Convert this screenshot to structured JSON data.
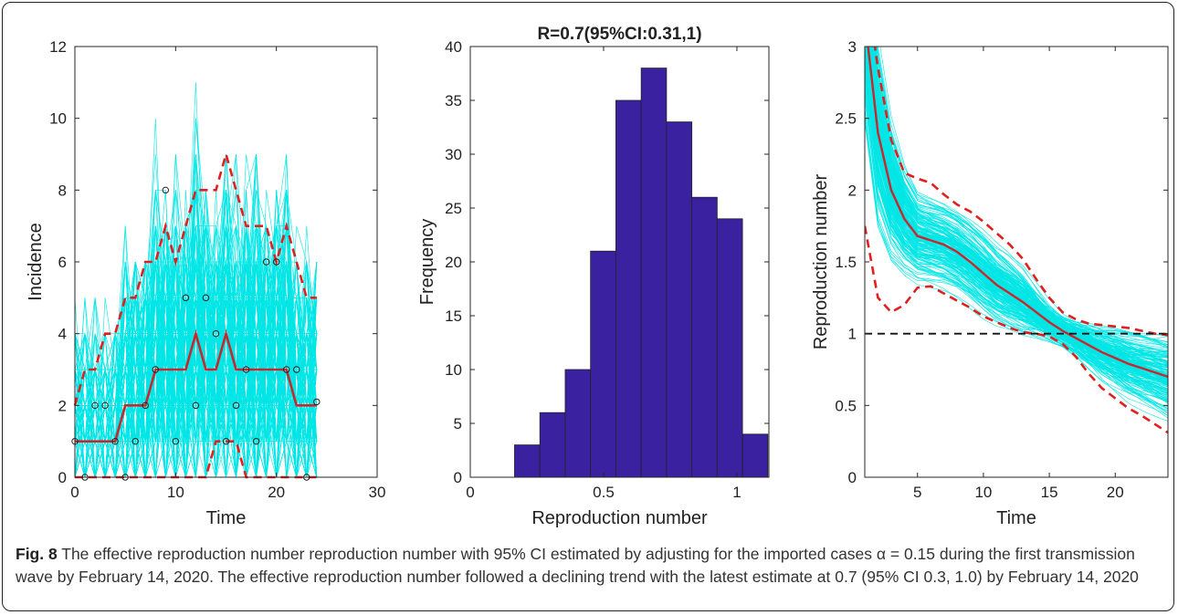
{
  "caption": {
    "label": "Fig. 8",
    "text": "The effective reproduction number reproduction number with 95% CI estimated by adjusting for the imported cases α = 0.15 during the first transmission wave by February 14, 2020. The effective reproduction number followed a declining trend with the latest estimate at 0.7 (95% CI 0.3, 1.0) by February 14, 2020"
  },
  "chart_data": [
    {
      "type": "line",
      "xlabel": "Time",
      "ylabel": "Incidence",
      "xlim": [
        0,
        30
      ],
      "ylim": [
        0,
        12
      ],
      "xticks": [
        0,
        10,
        20,
        30
      ],
      "yticks": [
        0,
        2,
        4,
        6,
        8,
        10,
        12
      ],
      "colors": {
        "simulations": "#00e5e5",
        "median": "#c8282d",
        "bounds": "#e0201e",
        "observed": "#222222"
      },
      "series": [
        {
          "role": "simulations",
          "style": "cyan thin lines",
          "count": 200,
          "x_range": [
            0,
            24
          ]
        },
        {
          "role": "median",
          "style": "solid red",
          "x": [
            0,
            1,
            2,
            3,
            4,
            5,
            6,
            7,
            8,
            9,
            10,
            11,
            12,
            13,
            14,
            15,
            16,
            17,
            18,
            19,
            20,
            21,
            22,
            23,
            24
          ],
          "y": [
            1,
            1,
            1,
            1,
            1,
            2,
            2,
            2,
            3,
            3,
            3,
            3,
            4,
            3,
            3,
            4,
            3,
            3,
            3,
            3,
            3,
            3,
            2,
            2,
            2
          ]
        },
        {
          "role": "upper-95",
          "style": "dashed red",
          "x": [
            0,
            1,
            2,
            3,
            4,
            5,
            6,
            7,
            8,
            9,
            10,
            11,
            12,
            13,
            14,
            15,
            16,
            17,
            18,
            19,
            20,
            21,
            22,
            23,
            24
          ],
          "y": [
            2,
            3,
            3,
            4,
            4,
            5,
            5,
            6,
            6,
            7,
            6,
            7,
            8,
            8,
            8,
            9,
            8,
            7,
            7,
            7,
            6,
            7,
            6,
            5,
            5
          ]
        },
        {
          "role": "lower-95",
          "style": "dashed red",
          "x": [
            0,
            1,
            2,
            3,
            4,
            5,
            6,
            7,
            8,
            9,
            10,
            11,
            12,
            13,
            14,
            15,
            16,
            17,
            18,
            19,
            20,
            21,
            22,
            23,
            24
          ],
          "y": [
            0,
            0,
            0,
            0,
            0,
            0,
            0,
            0,
            0,
            0,
            0,
            0,
            0,
            0,
            1,
            1,
            1,
            0,
            0,
            0,
            0,
            0,
            0,
            0,
            0
          ]
        },
        {
          "role": "observed",
          "style": "black open circles",
          "x": [
            0,
            1,
            2,
            3,
            4,
            5,
            6,
            7,
            8,
            9,
            10,
            11,
            12,
            13,
            14,
            15,
            16,
            17,
            18,
            19,
            20,
            21,
            22,
            23,
            24
          ],
          "y": [
            1,
            0,
            2,
            2,
            1,
            0,
            1,
            2,
            3,
            8,
            1,
            5,
            2,
            5,
            4,
            1,
            2,
            3,
            1,
            6,
            6,
            3,
            3,
            0,
            2.1
          ]
        }
      ]
    },
    {
      "type": "bar",
      "title": "R=0.7(95%CI:0.31,1)",
      "xlabel": "Reproduction number",
      "ylabel": "Frequency",
      "xlim": [
        0,
        1.12
      ],
      "ylim": [
        0,
        40
      ],
      "xticks": [
        0,
        0.5,
        1
      ],
      "xtick_labels": [
        "0",
        "0.5",
        "1"
      ],
      "yticks": [
        0,
        5,
        10,
        15,
        20,
        25,
        30,
        35,
        40
      ],
      "bar_color": "#3a219f",
      "bin_edges": [
        0.166,
        0.261,
        0.356,
        0.451,
        0.546,
        0.641,
        0.736,
        0.831,
        0.926,
        1.021,
        1.116
      ],
      "values": [
        3,
        6,
        10,
        21,
        35,
        38,
        33,
        26,
        24,
        4
      ]
    },
    {
      "type": "line",
      "xlabel": "Time",
      "ylabel": "Reproduction number",
      "xlim": [
        1,
        24
      ],
      "ylim": [
        0,
        3
      ],
      "xticks": [
        5,
        10,
        15,
        20
      ],
      "yticks": [
        0,
        0.5,
        1,
        1.5,
        2,
        2.5,
        3
      ],
      "reference_line": {
        "y": 1,
        "style": "dashed black"
      },
      "colors": {
        "simulations": "#00e5e5",
        "median": "#c8282d",
        "bounds": "#e0201e"
      },
      "series": [
        {
          "role": "simulations",
          "style": "cyan thin lines",
          "count": 200,
          "x_range": [
            1,
            24
          ]
        },
        {
          "role": "median",
          "style": "solid red",
          "x": [
            1,
            2,
            3,
            4,
            5,
            6,
            7,
            8,
            9,
            10,
            11,
            12,
            13,
            14,
            15,
            16,
            17,
            18,
            19,
            20,
            21,
            22,
            23,
            24
          ],
          "y": [
            3.2,
            2.4,
            2.0,
            1.8,
            1.68,
            1.65,
            1.62,
            1.57,
            1.5,
            1.42,
            1.34,
            1.28,
            1.22,
            1.15,
            1.08,
            1.02,
            0.97,
            0.92,
            0.87,
            0.83,
            0.79,
            0.76,
            0.73,
            0.7
          ]
        },
        {
          "role": "upper-95",
          "style": "dashed red",
          "x": [
            1,
            2,
            3,
            4,
            5,
            6,
            7,
            8,
            9,
            10,
            11,
            12,
            13,
            14,
            15,
            16,
            17,
            18,
            19,
            20,
            21,
            22,
            23,
            24
          ],
          "y": [
            3.5,
            2.85,
            2.35,
            2.12,
            2.08,
            2.05,
            1.97,
            1.9,
            1.85,
            1.78,
            1.7,
            1.62,
            1.52,
            1.38,
            1.25,
            1.15,
            1.1,
            1.07,
            1.06,
            1.05,
            1.04,
            1.02,
            1.0,
            0.99
          ]
        },
        {
          "role": "lower-95",
          "style": "dashed red",
          "x": [
            1,
            2,
            3,
            4,
            5,
            6,
            7,
            8,
            9,
            10,
            11,
            12,
            13,
            14,
            15,
            16,
            17,
            18,
            19,
            20,
            21,
            22,
            23,
            24
          ],
          "y": [
            1.75,
            1.25,
            1.15,
            1.2,
            1.32,
            1.33,
            1.28,
            1.23,
            1.18,
            1.12,
            1.08,
            1.04,
            1.01,
            1.0,
            0.98,
            0.93,
            0.84,
            0.72,
            0.62,
            0.55,
            0.48,
            0.43,
            0.37,
            0.31
          ]
        }
      ]
    }
  ]
}
